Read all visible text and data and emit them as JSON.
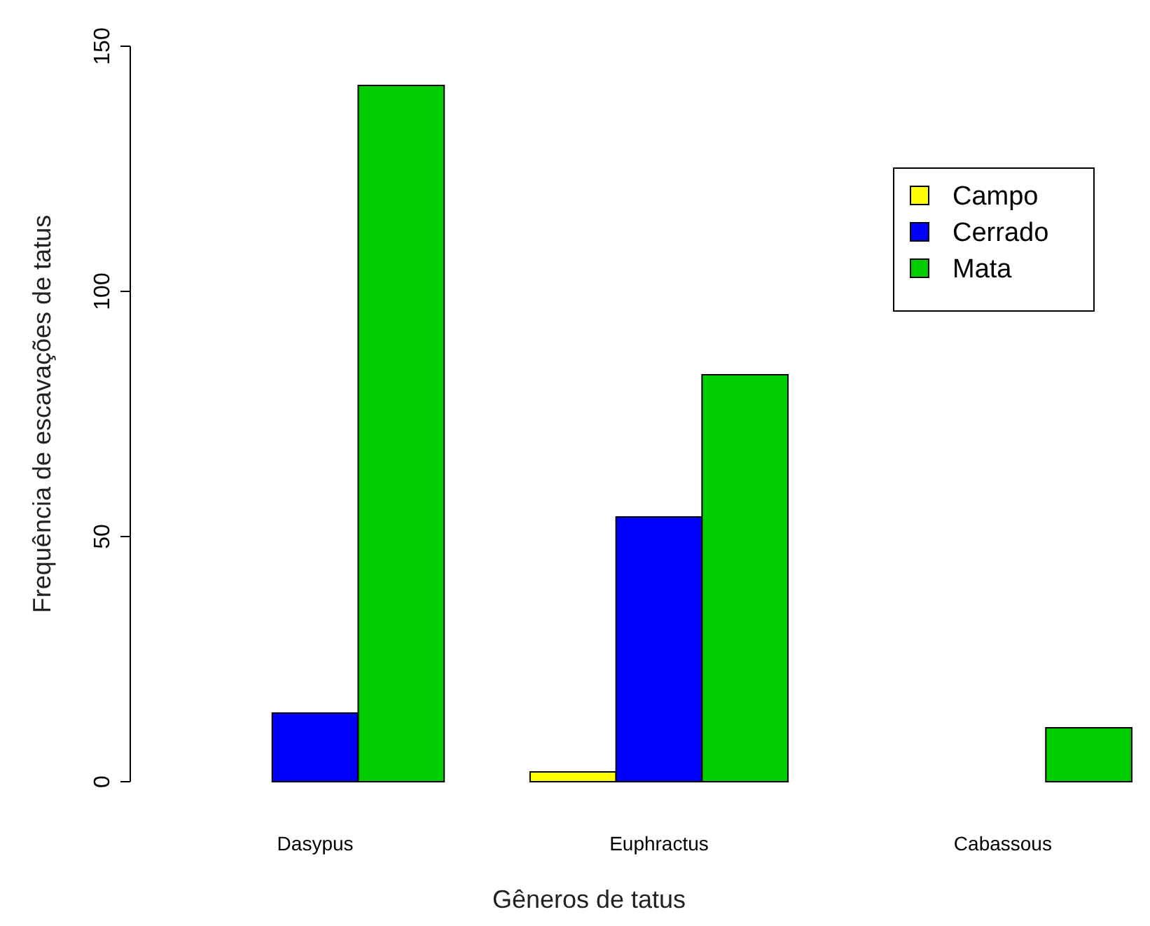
{
  "chart_data": {
    "type": "bar",
    "xlabel": "Gêneros de tatus",
    "ylabel": "Frequência de escavações de tatus",
    "categories": [
      "Dasypus",
      "Euphractus",
      "Cabassous"
    ],
    "series": [
      {
        "name": "Campo",
        "color": "#ffff00",
        "values": [
          0,
          2,
          0
        ]
      },
      {
        "name": "Cerrado",
        "color": "#0000ff",
        "values": [
          14,
          54,
          0
        ]
      },
      {
        "name": "Mata",
        "color": "#00cd00",
        "values": [
          142,
          83,
          11
        ]
      }
    ],
    "ylim": [
      0,
      150
    ],
    "yticks": [
      0,
      50,
      100,
      150
    ],
    "grid": false,
    "legend": "top right"
  }
}
